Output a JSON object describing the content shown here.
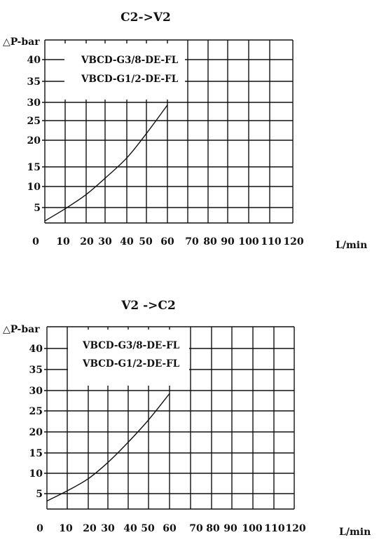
{
  "chart_data": [
    {
      "type": "line",
      "title": "C2->V2",
      "xlabel": "L/min",
      "ylabel": "△P-bar",
      "x_ticks": [
        "0",
        "10",
        "20",
        "30",
        "40",
        "50",
        "60",
        "70",
        "80",
        "90",
        "100",
        "110",
        "120"
      ],
      "y_ticks": [
        "5",
        "10",
        "15",
        "20",
        "25",
        "30",
        "35",
        "40"
      ],
      "xlim": [
        0,
        120
      ],
      "ylim": [
        0,
        45
      ],
      "grid": true,
      "legend_position": "top-left",
      "legend_lines": [
        "VBCD-G3/8-DE-FL",
        "VBCD-G1/2-DE-FL"
      ],
      "series": [
        {
          "x": [
            0,
            10,
            20,
            30,
            40,
            50,
            60
          ],
          "y": [
            0.5,
            3.5,
            7,
            11,
            16,
            22,
            29
          ]
        }
      ]
    },
    {
      "type": "line",
      "title": "V2 ->C2",
      "xlabel": "L/min",
      "ylabel": "△P-bar",
      "x_ticks": [
        "0",
        "10",
        "20",
        "30",
        "40",
        "50",
        "60",
        "70",
        "80",
        "90",
        "100",
        "110",
        "120"
      ],
      "y_ticks": [
        "5",
        "10",
        "15",
        "20",
        "25",
        "30",
        "35",
        "40"
      ],
      "xlim": [
        0,
        120
      ],
      "ylim": [
        0,
        45
      ],
      "grid": true,
      "legend_position": "top-left",
      "legend_lines": [
        "VBCD-G3/8-DE-FL",
        "VBCD-G1/2-DE-FL"
      ],
      "series": [
        {
          "x": [
            0,
            10,
            20,
            30,
            40,
            50,
            60
          ],
          "y": [
            2,
            4.5,
            7.5,
            11.5,
            16.5,
            22,
            28.5
          ]
        }
      ]
    }
  ]
}
